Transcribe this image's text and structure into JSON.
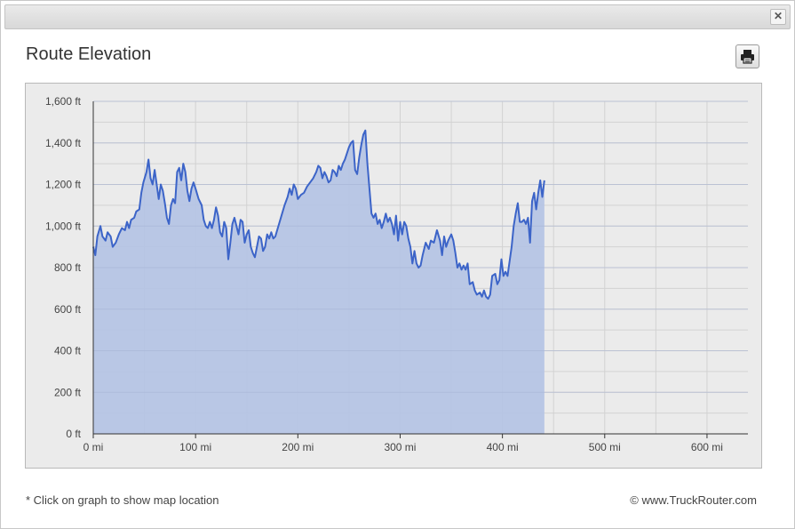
{
  "dialog": {
    "close_icon": "close-icon",
    "title": "Route Elevation",
    "print_icon": "printer-icon"
  },
  "footer": {
    "note": "* Click on graph to show map location",
    "copyright": "© www.TruckRouter.com"
  },
  "colors": {
    "line": "#3c64c8",
    "fill": "#b4c3e4",
    "plot_bg": "#ebebeb",
    "grid": "#d2d2d2"
  },
  "chart_data": {
    "type": "area",
    "title": "",
    "xlabel": "",
    "ylabel": "",
    "xlim": [
      0,
      640
    ],
    "ylim": [
      0,
      1600
    ],
    "x_ticks": [
      {
        "value": 0,
        "label": "0 mi"
      },
      {
        "value": 100,
        "label": "100 mi"
      },
      {
        "value": 200,
        "label": "200 mi"
      },
      {
        "value": 300,
        "label": "300 mi"
      },
      {
        "value": 400,
        "label": "400 mi"
      },
      {
        "value": 500,
        "label": "500 mi"
      },
      {
        "value": 600,
        "label": "600 mi"
      }
    ],
    "y_ticks": [
      {
        "value": 0,
        "label": "0 ft"
      },
      {
        "value": 200,
        "label": "200 ft"
      },
      {
        "value": 400,
        "label": "400 ft"
      },
      {
        "value": 600,
        "label": "600 ft"
      },
      {
        "value": 800,
        "label": "800 ft"
      },
      {
        "value": 1000,
        "label": "1,000 ft"
      },
      {
        "value": 1200,
        "label": "1,200 ft"
      },
      {
        "value": 1400,
        "label": "1,400 ft"
      },
      {
        "value": 1600,
        "label": "1,600 ft"
      }
    ],
    "grid": true,
    "series": [
      {
        "points": [
          [
            0,
            900
          ],
          [
            2,
            860
          ],
          [
            4,
            950
          ],
          [
            7,
            1000
          ],
          [
            9,
            950
          ],
          [
            12,
            930
          ],
          [
            14,
            970
          ],
          [
            17,
            950
          ],
          [
            19,
            900
          ],
          [
            22,
            920
          ],
          [
            25,
            960
          ],
          [
            28,
            990
          ],
          [
            31,
            980
          ],
          [
            33,
            1020
          ],
          [
            35,
            990
          ],
          [
            37,
            1030
          ],
          [
            40,
            1040
          ],
          [
            42,
            1070
          ],
          [
            45,
            1080
          ],
          [
            47,
            1160
          ],
          [
            49,
            1210
          ],
          [
            52,
            1260
          ],
          [
            54,
            1320
          ],
          [
            56,
            1230
          ],
          [
            58,
            1200
          ],
          [
            60,
            1270
          ],
          [
            62,
            1200
          ],
          [
            64,
            1130
          ],
          [
            66,
            1200
          ],
          [
            68,
            1170
          ],
          [
            70,
            1110
          ],
          [
            72,
            1040
          ],
          [
            74,
            1010
          ],
          [
            76,
            1100
          ],
          [
            78,
            1130
          ],
          [
            80,
            1110
          ],
          [
            82,
            1260
          ],
          [
            84,
            1280
          ],
          [
            86,
            1220
          ],
          [
            88,
            1300
          ],
          [
            90,
            1260
          ],
          [
            92,
            1170
          ],
          [
            94,
            1120
          ],
          [
            96,
            1180
          ],
          [
            98,
            1210
          ],
          [
            100,
            1180
          ],
          [
            103,
            1130
          ],
          [
            106,
            1100
          ],
          [
            108,
            1030
          ],
          [
            110,
            1000
          ],
          [
            112,
            990
          ],
          [
            114,
            1020
          ],
          [
            116,
            990
          ],
          [
            118,
            1030
          ],
          [
            120,
            1090
          ],
          [
            122,
            1050
          ],
          [
            124,
            970
          ],
          [
            126,
            950
          ],
          [
            128,
            1020
          ],
          [
            130,
            990
          ],
          [
            132,
            840
          ],
          [
            134,
            920
          ],
          [
            136,
            1010
          ],
          [
            138,
            1040
          ],
          [
            140,
            1000
          ],
          [
            142,
            960
          ],
          [
            144,
            1030
          ],
          [
            146,
            1020
          ],
          [
            148,
            920
          ],
          [
            150,
            960
          ],
          [
            152,
            980
          ],
          [
            154,
            900
          ],
          [
            156,
            870
          ],
          [
            158,
            850
          ],
          [
            160,
            900
          ],
          [
            162,
            950
          ],
          [
            164,
            940
          ],
          [
            166,
            880
          ],
          [
            168,
            900
          ],
          [
            170,
            960
          ],
          [
            172,
            940
          ],
          [
            174,
            970
          ],
          [
            176,
            940
          ],
          [
            178,
            950
          ],
          [
            181,
            1000
          ],
          [
            184,
            1050
          ],
          [
            187,
            1100
          ],
          [
            190,
            1140
          ],
          [
            192,
            1180
          ],
          [
            194,
            1150
          ],
          [
            196,
            1200
          ],
          [
            198,
            1180
          ],
          [
            200,
            1130
          ],
          [
            203,
            1150
          ],
          [
            206,
            1160
          ],
          [
            209,
            1190
          ],
          [
            212,
            1210
          ],
          [
            215,
            1230
          ],
          [
            218,
            1260
          ],
          [
            220,
            1290
          ],
          [
            222,
            1280
          ],
          [
            224,
            1230
          ],
          [
            226,
            1260
          ],
          [
            228,
            1240
          ],
          [
            230,
            1210
          ],
          [
            232,
            1220
          ],
          [
            234,
            1270
          ],
          [
            236,
            1260
          ],
          [
            238,
            1240
          ],
          [
            240,
            1290
          ],
          [
            242,
            1270
          ],
          [
            244,
            1300
          ],
          [
            246,
            1320
          ],
          [
            248,
            1350
          ],
          [
            250,
            1380
          ],
          [
            252,
            1400
          ],
          [
            254,
            1410
          ],
          [
            256,
            1270
          ],
          [
            258,
            1250
          ],
          [
            260,
            1330
          ],
          [
            262,
            1390
          ],
          [
            264,
            1440
          ],
          [
            266,
            1460
          ],
          [
            268,
            1300
          ],
          [
            270,
            1180
          ],
          [
            272,
            1060
          ],
          [
            274,
            1040
          ],
          [
            276,
            1060
          ],
          [
            278,
            1010
          ],
          [
            280,
            1030
          ],
          [
            282,
            990
          ],
          [
            284,
            1020
          ],
          [
            286,
            1060
          ],
          [
            288,
            1020
          ],
          [
            290,
            1040
          ],
          [
            292,
            1010
          ],
          [
            294,
            960
          ],
          [
            296,
            1050
          ],
          [
            298,
            930
          ],
          [
            300,
            1020
          ],
          [
            302,
            960
          ],
          [
            304,
            1020
          ],
          [
            306,
            1000
          ],
          [
            308,
            940
          ],
          [
            310,
            900
          ],
          [
            312,
            820
          ],
          [
            314,
            880
          ],
          [
            316,
            820
          ],
          [
            318,
            800
          ],
          [
            320,
            810
          ],
          [
            322,
            860
          ],
          [
            325,
            920
          ],
          [
            328,
            890
          ],
          [
            330,
            930
          ],
          [
            333,
            920
          ],
          [
            336,
            980
          ],
          [
            339,
            930
          ],
          [
            341,
            860
          ],
          [
            343,
            950
          ],
          [
            345,
            900
          ],
          [
            347,
            930
          ],
          [
            350,
            960
          ],
          [
            352,
            930
          ],
          [
            354,
            870
          ],
          [
            356,
            800
          ],
          [
            358,
            820
          ],
          [
            360,
            790
          ],
          [
            362,
            810
          ],
          [
            364,
            790
          ],
          [
            366,
            820
          ],
          [
            368,
            720
          ],
          [
            371,
            730
          ],
          [
            373,
            690
          ],
          [
            375,
            670
          ],
          [
            378,
            680
          ],
          [
            380,
            660
          ],
          [
            382,
            690
          ],
          [
            384,
            660
          ],
          [
            386,
            650
          ],
          [
            388,
            670
          ],
          [
            390,
            760
          ],
          [
            393,
            770
          ],
          [
            395,
            720
          ],
          [
            397,
            740
          ],
          [
            399,
            840
          ],
          [
            401,
            760
          ],
          [
            403,
            780
          ],
          [
            405,
            760
          ],
          [
            407,
            830
          ],
          [
            409,
            900
          ],
          [
            411,
            1000
          ],
          [
            413,
            1060
          ],
          [
            415,
            1110
          ],
          [
            417,
            1020
          ],
          [
            419,
            1020
          ],
          [
            421,
            1030
          ],
          [
            423,
            1010
          ],
          [
            425,
            1040
          ],
          [
            427,
            920
          ],
          [
            429,
            1120
          ],
          [
            431,
            1160
          ],
          [
            433,
            1080
          ],
          [
            435,
            1160
          ],
          [
            437,
            1220
          ],
          [
            439,
            1140
          ],
          [
            440,
            1180
          ],
          [
            441,
            1220
          ]
        ]
      }
    ]
  }
}
